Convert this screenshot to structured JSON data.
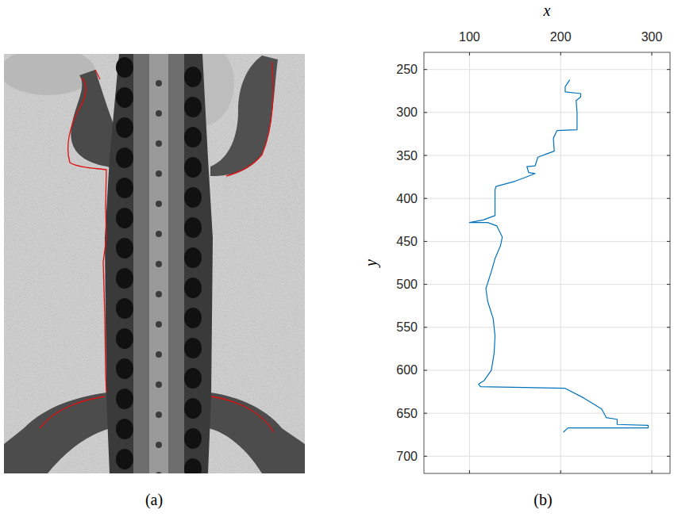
{
  "image": {
    "label": "(a)"
  },
  "chart_data": {
    "type": "line",
    "title": "(b)",
    "xlabel": "x",
    "ylabel": "y",
    "xlim": [
      50,
      320
    ],
    "xticks": [
      100,
      200,
      300
    ],
    "ylim": [
      720,
      230
    ],
    "yticks": [
      250,
      300,
      350,
      400,
      450,
      500,
      550,
      600,
      650,
      700
    ],
    "grid": true,
    "series": [
      {
        "color": "#0072bd",
        "x": [
          210,
          205,
          205,
          222,
          222,
          217,
          218,
          218,
          196,
          192,
          193,
          185,
          175,
          172,
          163,
          165,
          172,
          160,
          150,
          129,
          128,
          128,
          115,
          100,
          120,
          130,
          136,
          134,
          128,
          124,
          118,
          120,
          126,
          128,
          127,
          124,
          116,
          110,
          112,
          160,
          205,
          225,
          245,
          250,
          262,
          262,
          296,
          296,
          208,
          203
        ],
        "values": [
          262,
          270,
          276,
          278,
          282,
          286,
          300,
          320,
          321,
          330,
          345,
          348,
          352,
          362,
          363,
          370,
          371,
          376,
          380,
          386,
          390,
          420,
          425,
          428,
          428,
          432,
          445,
          455,
          470,
          485,
          505,
          520,
          540,
          560,
          580,
          600,
          612,
          616,
          619,
          620,
          621,
          632,
          645,
          655,
          657,
          663,
          664,
          667,
          667,
          672
        ]
      }
    ]
  }
}
